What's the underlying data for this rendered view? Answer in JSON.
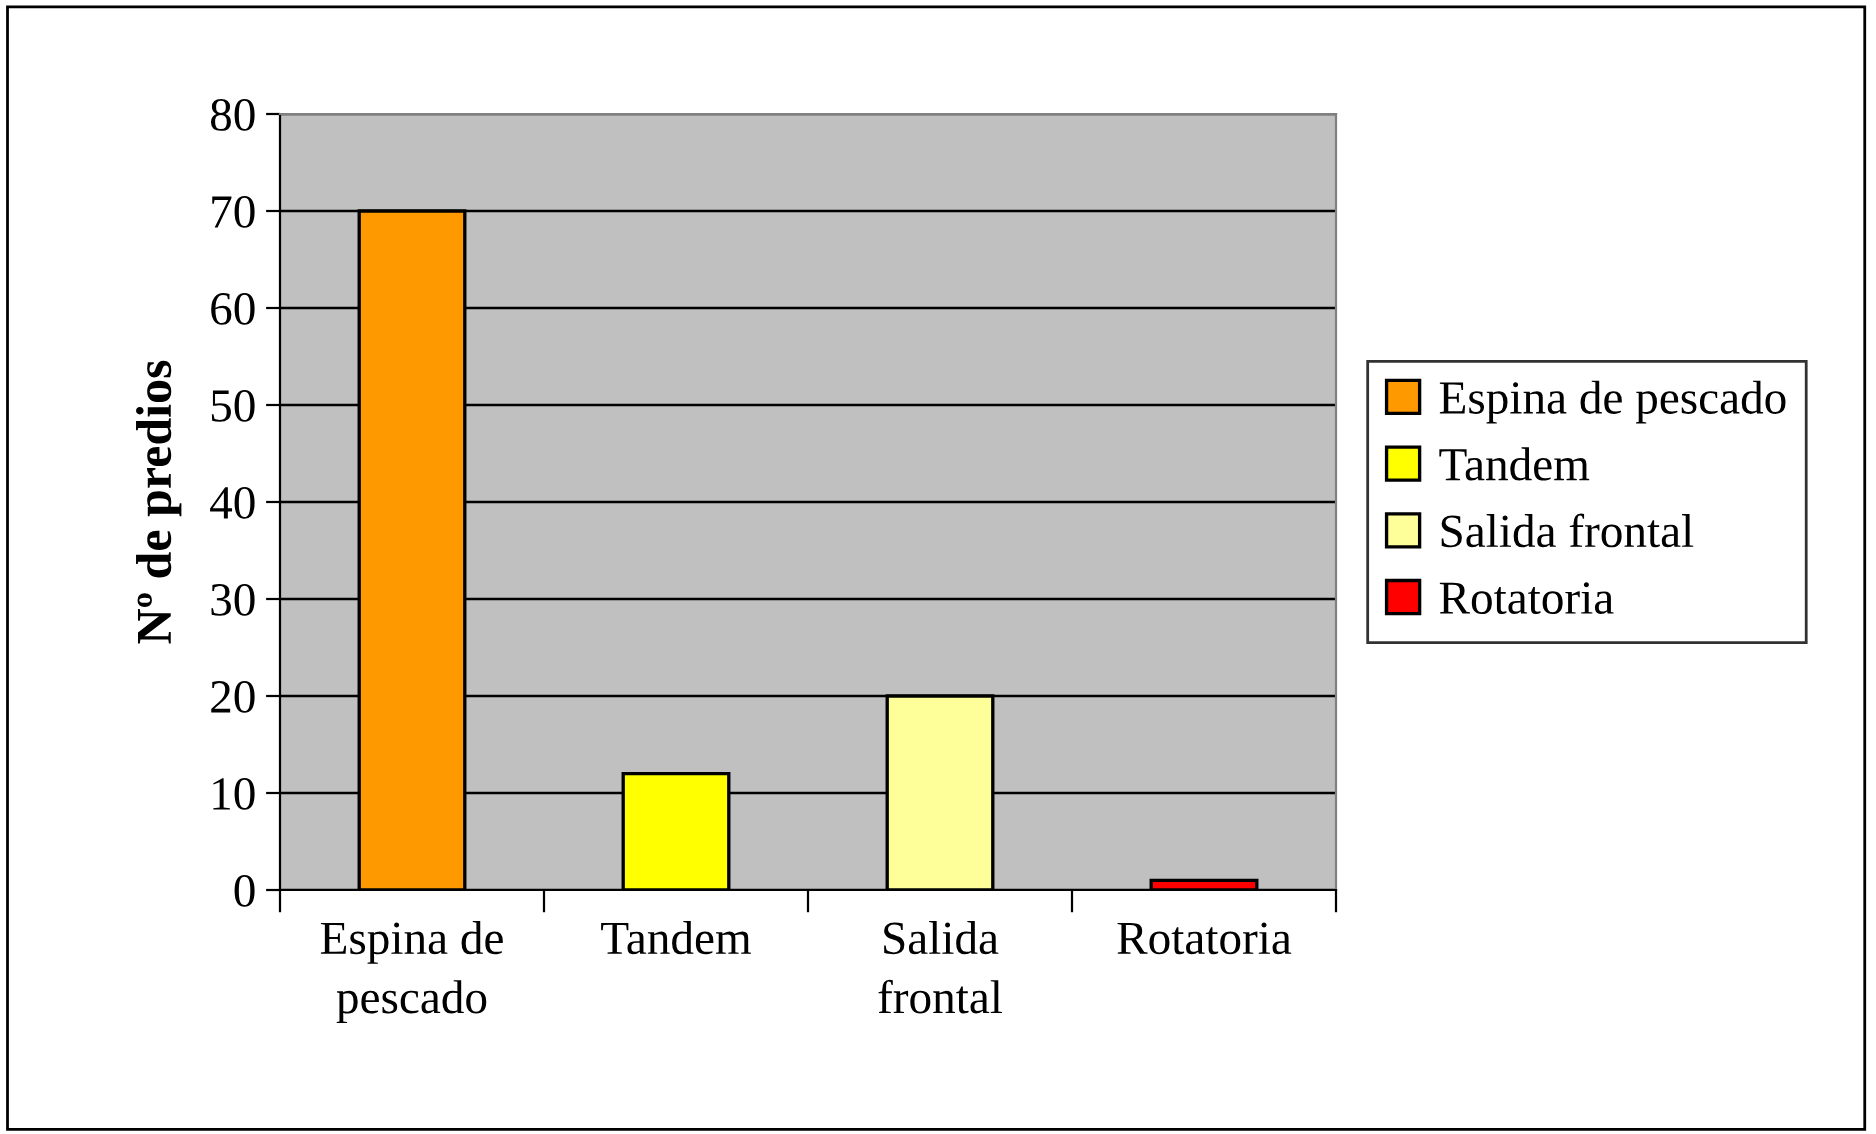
{
  "chart_data": {
    "type": "bar",
    "ylabel": "Nº de predios",
    "categories": [
      "Espina de pescado",
      "Tandem",
      "Salida frontal",
      "Rotatoria"
    ],
    "series": [
      {
        "name": "Espina de pescado",
        "color": "#ff9900",
        "values": [
          70,
          null,
          null,
          null
        ]
      },
      {
        "name": "Tandem",
        "color": "#ffff00",
        "values": [
          null,
          12,
          null,
          null
        ]
      },
      {
        "name": "Salida frontal",
        "color": "#ffff99",
        "values": [
          null,
          null,
          20,
          null
        ]
      },
      {
        "name": "Rotatoria",
        "color": "#ff0000",
        "values": [
          null,
          null,
          null,
          1
        ]
      }
    ],
    "ylim": [
      0,
      80
    ],
    "yticks": [
      0,
      10,
      20,
      30,
      40,
      50,
      60,
      70,
      80
    ],
    "grid": "y",
    "legend": "right"
  }
}
